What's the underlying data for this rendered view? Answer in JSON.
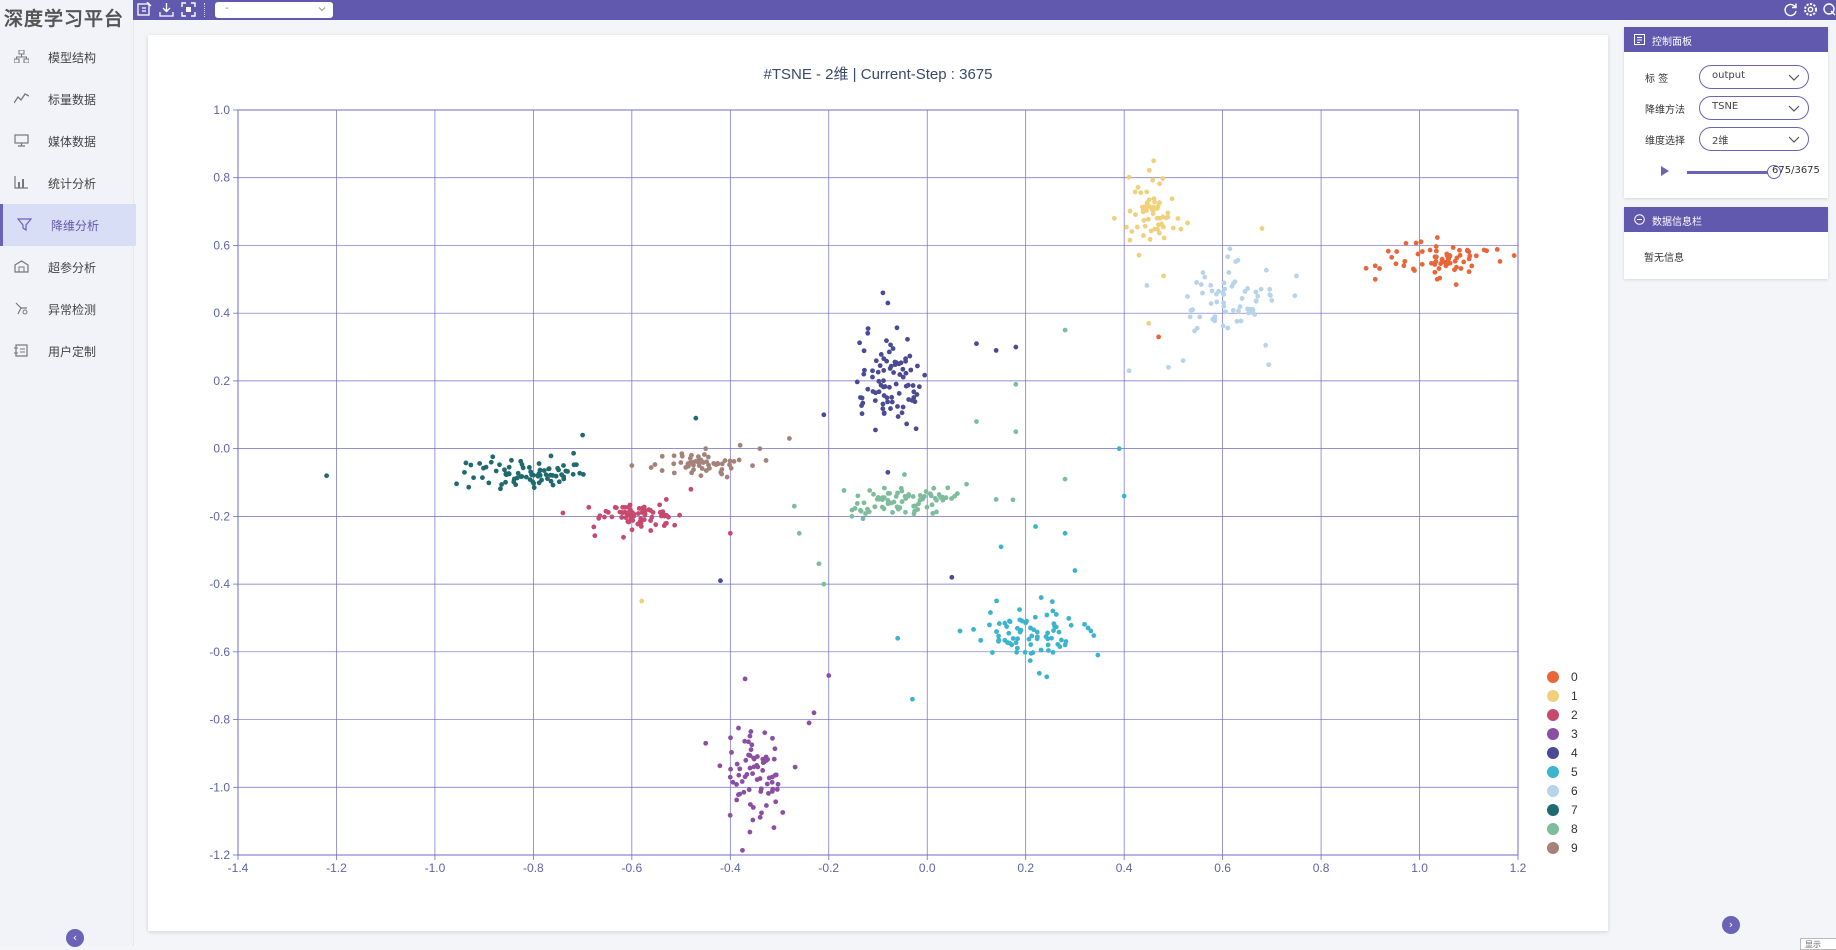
{
  "app": {
    "title": "深度学习平台"
  },
  "sidebar": {
    "items": [
      {
        "label": "模型结构",
        "icon": "model-structure-icon"
      },
      {
        "label": "标量数据",
        "icon": "scalar-line-icon"
      },
      {
        "label": "媒体数据",
        "icon": "media-monitor-icon"
      },
      {
        "label": "统计分析",
        "icon": "statistics-icon"
      },
      {
        "label": "降维分析",
        "icon": "funnel-icon",
        "active": true
      },
      {
        "label": "超参分析",
        "icon": "hyperparam-icon"
      },
      {
        "label": "异常检测",
        "icon": "anomaly-icon"
      },
      {
        "label": "用户定制",
        "icon": "custom-icon"
      }
    ],
    "collapse_icon": "chevron-left-icon"
  },
  "topbar": {
    "icons": [
      "edit-icon",
      "download-icon",
      "fullscreen-icon"
    ],
    "select_value": "-",
    "right_icons": [
      "refresh-icon",
      "settings-icon",
      "connect-icon"
    ]
  },
  "control_panel": {
    "title": "控制面板",
    "label_label": "标  签",
    "label_value": "output",
    "method_label": "降维方法",
    "method_value": "TSNE",
    "dim_label": "维度选择",
    "dim_value": "2维",
    "slider_text": "675/3675",
    "slider_fraction": 1.0
  },
  "info_panel": {
    "title": "数据信息栏",
    "text": "暂无信息"
  },
  "corner_tag": "显示",
  "colors": {
    "accent": "#6059ad",
    "classes": [
      "#e8663a",
      "#f0d07a",
      "#c64a6e",
      "#8b4ea3",
      "#4a4b93",
      "#3bb4ce",
      "#b7d4ea",
      "#1f6a6e",
      "#7dbd9b",
      "#a4827a"
    ]
  },
  "chart_data": {
    "type": "scatter",
    "title": "#TSNE - 2维 | Current-Step : 3675",
    "xlim": [
      -1.4,
      1.2
    ],
    "ylim": [
      -1.2,
      1.0
    ],
    "xticks": [
      "-1.4",
      "-1.2",
      "-1.0",
      "-0.8",
      "-0.6",
      "-0.4",
      "-0.2",
      "0.0",
      "0.2",
      "0.4",
      "0.6",
      "0.8",
      "1.0",
      "1.2"
    ],
    "yticks": [
      "1.0",
      "0.8",
      "0.6",
      "0.4",
      "0.2",
      "0.0",
      "-0.2",
      "-0.4",
      "-0.6",
      "-0.8",
      "-1.0",
      "-1.2"
    ],
    "grid": true,
    "legend_position": "bottom-right",
    "series": [
      {
        "name": "0",
        "clusters": [
          {
            "cx": 1.05,
            "cy": 0.56,
            "sx": 0.06,
            "sy": 0.03,
            "n": 70
          }
        ],
        "extra": [
          [
            0.91,
            0.54
          ],
          [
            0.91,
            0.5
          ],
          [
            0.47,
            0.33
          ]
        ]
      },
      {
        "name": "1",
        "clusters": [
          {
            "cx": 0.46,
            "cy": 0.71,
            "sx": 0.025,
            "sy": 0.05,
            "n": 60
          }
        ],
        "extra": [
          [
            0.46,
            0.85
          ],
          [
            0.38,
            0.68
          ],
          [
            0.68,
            0.65
          ],
          [
            0.48,
            0.51
          ],
          [
            0.45,
            0.37
          ],
          [
            -0.58,
            -0.45
          ]
        ]
      },
      {
        "name": "2",
        "clusters": [
          {
            "cx": -0.59,
            "cy": -0.2,
            "sx": 0.045,
            "sy": 0.02,
            "n": 70
          }
        ],
        "extra": [
          [
            -0.74,
            -0.19
          ],
          [
            -0.53,
            -0.15
          ],
          [
            -0.48,
            -0.12
          ],
          [
            -0.4,
            -0.25
          ]
        ]
      },
      {
        "name": "3",
        "clusters": [
          {
            "cx": -0.35,
            "cy": -0.97,
            "sx": 0.03,
            "sy": 0.07,
            "n": 75
          }
        ],
        "extra": [
          [
            -0.37,
            -0.68
          ],
          [
            -0.2,
            -0.67
          ],
          [
            -0.23,
            -0.78
          ],
          [
            -0.24,
            -0.81
          ],
          [
            -0.45,
            -0.87
          ]
        ]
      },
      {
        "name": "4",
        "clusters": [
          {
            "cx": -0.08,
            "cy": 0.19,
            "sx": 0.035,
            "sy": 0.07,
            "n": 85
          }
        ],
        "extra": [
          [
            -0.09,
            0.46
          ],
          [
            -0.08,
            0.43
          ],
          [
            0.1,
            0.31
          ],
          [
            0.14,
            0.29
          ],
          [
            0.18,
            0.3
          ],
          [
            -0.08,
            -0.07
          ],
          [
            0.05,
            -0.38
          ],
          [
            -0.42,
            -0.39
          ],
          [
            -0.21,
            0.1
          ]
        ]
      },
      {
        "name": "5",
        "clusters": [
          {
            "cx": 0.2,
            "cy": -0.54,
            "sx": 0.06,
            "sy": 0.04,
            "n": 80
          }
        ],
        "extra": [
          [
            0.22,
            -0.23
          ],
          [
            0.28,
            -0.25
          ],
          [
            0.3,
            -0.36
          ],
          [
            0.39,
            0.0
          ],
          [
            0.4,
            -0.14
          ],
          [
            0.15,
            -0.29
          ],
          [
            -0.06,
            -0.56
          ],
          [
            -0.03,
            -0.74
          ]
        ]
      },
      {
        "name": "6",
        "clusters": [
          {
            "cx": 0.62,
            "cy": 0.44,
            "sx": 0.05,
            "sy": 0.06,
            "n": 70
          }
        ],
        "extra": [
          [
            0.75,
            0.51
          ],
          [
            0.52,
            0.26
          ],
          [
            0.49,
            0.24
          ],
          [
            0.41,
            0.23
          ],
          [
            0.56,
            0.52
          ]
        ]
      },
      {
        "name": "7",
        "clusters": [
          {
            "cx": -0.82,
            "cy": -0.07,
            "sx": 0.055,
            "sy": 0.022,
            "n": 80
          }
        ],
        "extra": [
          [
            -1.22,
            -0.08
          ],
          [
            -0.47,
            0.09
          ],
          [
            -0.7,
            0.04
          ],
          [
            -0.94,
            -0.07
          ]
        ]
      },
      {
        "name": "8",
        "clusters": [
          {
            "cx": -0.05,
            "cy": -0.15,
            "sx": 0.07,
            "sy": 0.025,
            "n": 80
          }
        ],
        "extra": [
          [
            0.1,
            0.08
          ],
          [
            0.18,
            0.19
          ],
          [
            0.18,
            0.05
          ],
          [
            0.28,
            0.35
          ],
          [
            -0.27,
            -0.17
          ],
          [
            -0.26,
            -0.25
          ],
          [
            -0.22,
            -0.34
          ],
          [
            -0.21,
            -0.4
          ],
          [
            0.28,
            -0.09
          ],
          [
            0.14,
            -0.15
          ]
        ]
      },
      {
        "name": "9",
        "clusters": [
          {
            "cx": -0.46,
            "cy": -0.05,
            "sx": 0.045,
            "sy": 0.018,
            "n": 55
          }
        ],
        "extra": [
          [
            -0.28,
            0.03
          ],
          [
            -0.34,
            0.0
          ],
          [
            -0.38,
            0.01
          ],
          [
            -0.45,
            0.0
          ],
          [
            -0.6,
            -0.05
          ]
        ]
      }
    ]
  }
}
